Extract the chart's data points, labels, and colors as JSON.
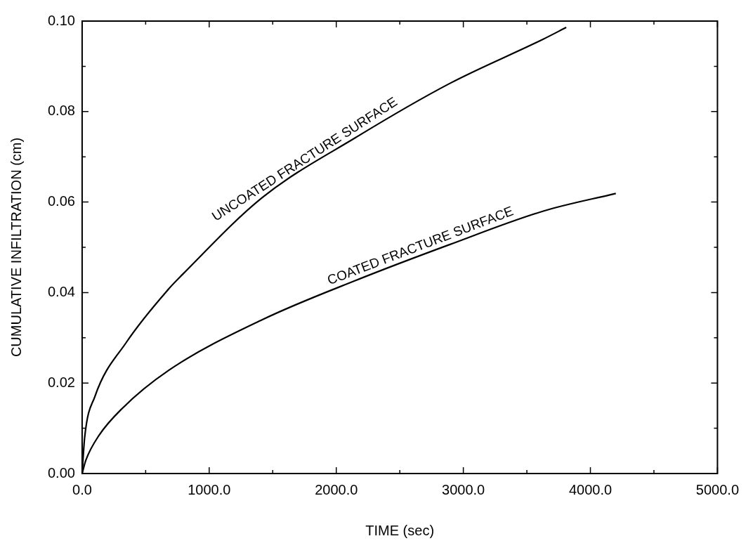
{
  "chart_data": {
    "type": "line",
    "xlabel": "TIME (sec)",
    "ylabel": "CUMULATIVE INFILTRATION (cm)",
    "xlim": [
      0,
      5000
    ],
    "ylim": [
      0,
      0.1
    ],
    "xticks": [
      {
        "value": 0,
        "label": "0.0"
      },
      {
        "value": 500,
        "label": null
      },
      {
        "value": 1000,
        "label": "1000.0"
      },
      {
        "value": 1500,
        "label": null
      },
      {
        "value": 2000,
        "label": "2000.0"
      },
      {
        "value": 2500,
        "label": null
      },
      {
        "value": 3000,
        "label": "3000.0"
      },
      {
        "value": 3500,
        "label": null
      },
      {
        "value": 4000,
        "label": "4000.0"
      },
      {
        "value": 4500,
        "label": null
      },
      {
        "value": 5000,
        "label": "5000.0"
      }
    ],
    "yticks": [
      {
        "value": 0,
        "label": "0.00"
      },
      {
        "value": 0.01,
        "label": null
      },
      {
        "value": 0.02,
        "label": "0.02"
      },
      {
        "value": 0.03,
        "label": null
      },
      {
        "value": 0.04,
        "label": "0.04"
      },
      {
        "value": 0.05,
        "label": null
      },
      {
        "value": 0.06,
        "label": "0.06"
      },
      {
        "value": 0.07,
        "label": null
      },
      {
        "value": 0.08,
        "label": "0.08"
      },
      {
        "value": 0.09,
        "label": null
      },
      {
        "value": 0.1,
        "label": "0.10"
      }
    ],
    "marker": "none",
    "line_style": "solid",
    "legend": false,
    "series": [
      {
        "name": "UNCOATED FRACTURE SURFACE",
        "color": "#000000",
        "x": [
          0,
          20,
          100,
          348,
          681,
          790,
          1418,
          2155,
          2892,
          3629,
          3810
        ],
        "values": [
          0,
          0.008,
          0.017,
          0.029,
          0.0408,
          0.044,
          0.061,
          0.0743,
          0.0862,
          0.096,
          0.0986
        ]
      },
      {
        "name": "COATED FRACTURE SURFACE",
        "color": "#000000",
        "x": [
          0,
          30,
          132,
          312,
          681,
          1418,
          2155,
          2892,
          3629,
          4200
        ],
        "values": [
          0,
          0.003,
          0.0084,
          0.0143,
          0.0228,
          0.034,
          0.0427,
          0.0506,
          0.058,
          0.0619
        ]
      }
    ]
  }
}
